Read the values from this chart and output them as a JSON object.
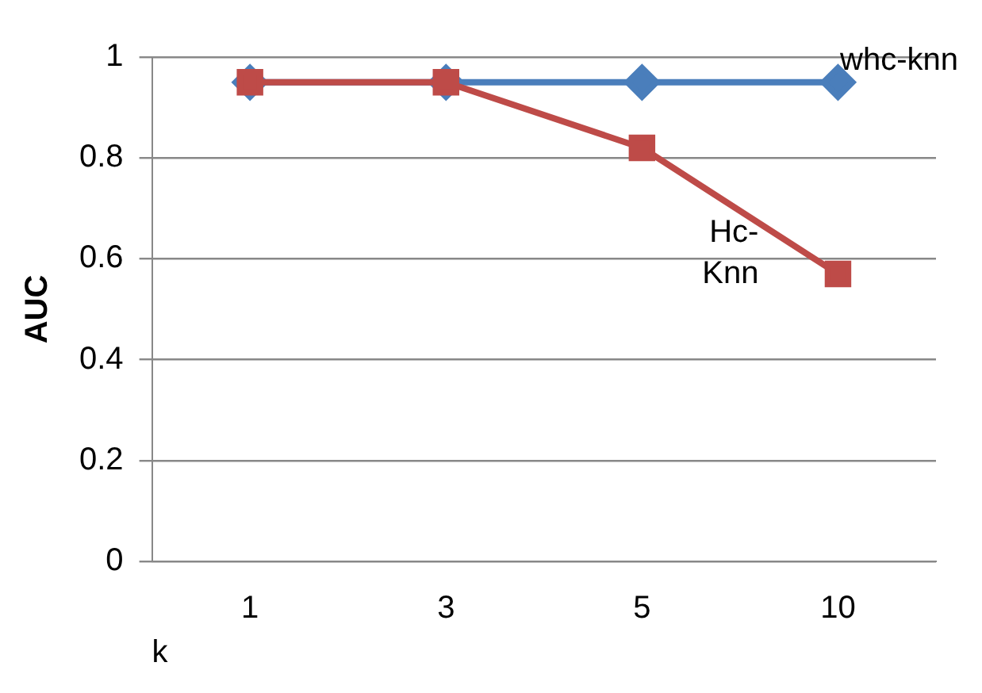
{
  "chart_data": {
    "type": "line",
    "xlabel": "k",
    "ylabel": "AUC",
    "categories": [
      "1",
      "3",
      "5",
      "10"
    ],
    "series": [
      {
        "name": "whc-knn",
        "color": "#4a7ebb",
        "values": [
          0.95,
          0.95,
          0.95,
          0.95
        ],
        "marker": "diamond"
      },
      {
        "name": "Hc-Knn",
        "color": "#be4b48",
        "values": [
          0.95,
          0.95,
          0.82,
          0.57
        ],
        "marker": "square"
      }
    ],
    "ylim": [
      0,
      1
    ],
    "yticks": [
      0,
      0.2,
      0.4,
      0.6,
      0.8,
      1
    ],
    "grid": "y",
    "legend": false
  }
}
